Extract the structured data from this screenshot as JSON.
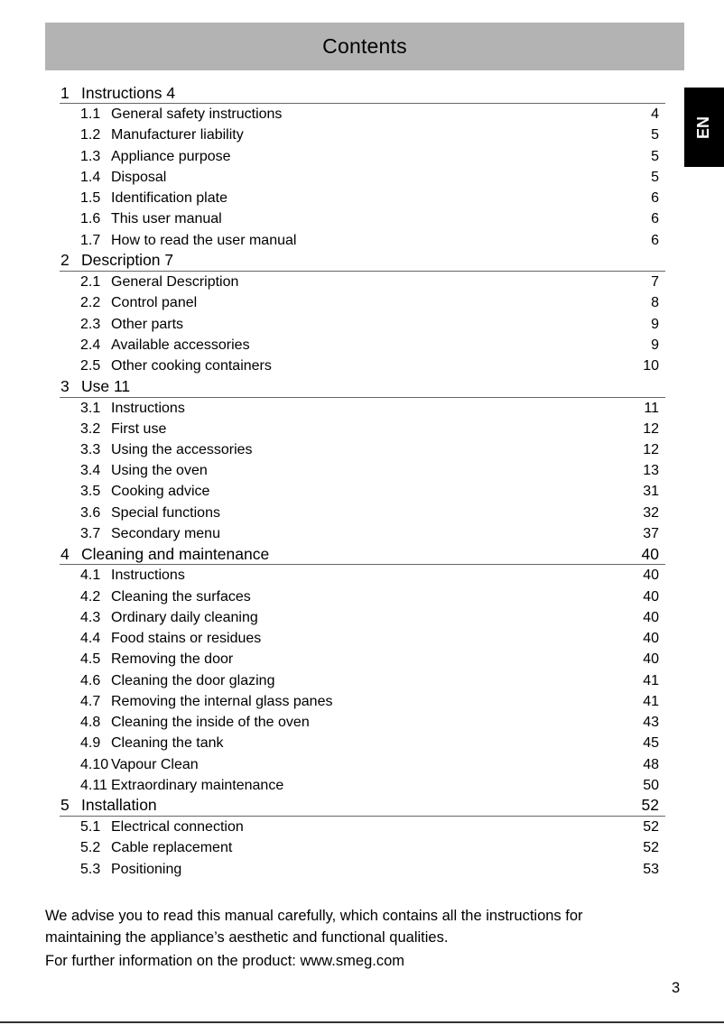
{
  "header": {
    "title": "Contents"
  },
  "language_tab": "EN",
  "toc": [
    {
      "num": "1",
      "title": "Instructions 4",
      "page": "",
      "items": [
        {
          "num": "1.1",
          "title": "General safety instructions",
          "page": "4"
        },
        {
          "num": "1.2",
          "title": "Manufacturer liability",
          "page": "5"
        },
        {
          "num": "1.3",
          "title": "Appliance purpose",
          "page": "5"
        },
        {
          "num": "1.4",
          "title": "Disposal",
          "page": "5"
        },
        {
          "num": "1.5",
          "title": "Identification plate",
          "page": "6"
        },
        {
          "num": "1.6",
          "title": "This user manual",
          "page": "6"
        },
        {
          "num": "1.7",
          "title": "How to read the user manual",
          "page": "6"
        }
      ]
    },
    {
      "num": "2",
      "title": "Description 7",
      "page": "",
      "items": [
        {
          "num": "2.1",
          "title": "General Description",
          "page": "7"
        },
        {
          "num": "2.2",
          "title": "Control panel",
          "page": "8"
        },
        {
          "num": "2.3",
          "title": "Other parts",
          "page": "9"
        },
        {
          "num": "2.4",
          "title": "Available accessories",
          "page": "9"
        },
        {
          "num": "2.5",
          "title": "Other cooking containers",
          "page": "10"
        }
      ]
    },
    {
      "num": "3",
      "title": "Use 11",
      "page": "",
      "items": [
        {
          "num": "3.1",
          "title": "Instructions",
          "page": "11"
        },
        {
          "num": "3.2",
          "title": "First use",
          "page": "12"
        },
        {
          "num": "3.3",
          "title": "Using the accessories",
          "page": "12"
        },
        {
          "num": "3.4",
          "title": "Using the oven",
          "page": "13"
        },
        {
          "num": "3.5",
          "title": "Cooking advice",
          "page": "31"
        },
        {
          "num": "3.6",
          "title": "Special functions",
          "page": "32"
        },
        {
          "num": "3.7",
          "title": "Secondary menu",
          "page": "37"
        }
      ]
    },
    {
      "num": "4",
      "title": "Cleaning and maintenance",
      "page": "40",
      "items": [
        {
          "num": "4.1",
          "title": "Instructions",
          "page": "40"
        },
        {
          "num": "4.2",
          "title": "Cleaning the surfaces",
          "page": "40"
        },
        {
          "num": "4.3",
          "title": "Ordinary daily cleaning",
          "page": "40"
        },
        {
          "num": "4.4",
          "title": "Food stains or residues",
          "page": "40"
        },
        {
          "num": "4.5",
          "title": "Removing the door",
          "page": "40"
        },
        {
          "num": "4.6",
          "title": "Cleaning the door glazing",
          "page": "41"
        },
        {
          "num": "4.7",
          "title": "Removing the internal glass panes",
          "page": "41"
        },
        {
          "num": "4.8",
          "title": "Cleaning the inside of the oven",
          "page": "43"
        },
        {
          "num": "4.9",
          "title": "Cleaning the tank",
          "page": "45"
        },
        {
          "num": "4.10",
          "title": "Vapour Clean",
          "page": "48"
        },
        {
          "num": "4.11",
          "title": "Extraordinary maintenance",
          "page": "50"
        }
      ]
    },
    {
      "num": "5",
      "title": "Installation",
      "page": "52",
      "items": [
        {
          "num": "5.1",
          "title": "Electrical connection",
          "page": "52"
        },
        {
          "num": "5.2",
          "title": "Cable replacement",
          "page": "52"
        },
        {
          "num": "5.3",
          "title": "Positioning",
          "page": "53"
        }
      ]
    }
  ],
  "footer": {
    "line1": "We advise you to read this manual carefully, which contains all the instructions for",
    "line2": "maintaining the appliance’s aesthetic and functional qualities.",
    "line3": "For further information on the product: www.smeg.com"
  },
  "page_number": "3"
}
